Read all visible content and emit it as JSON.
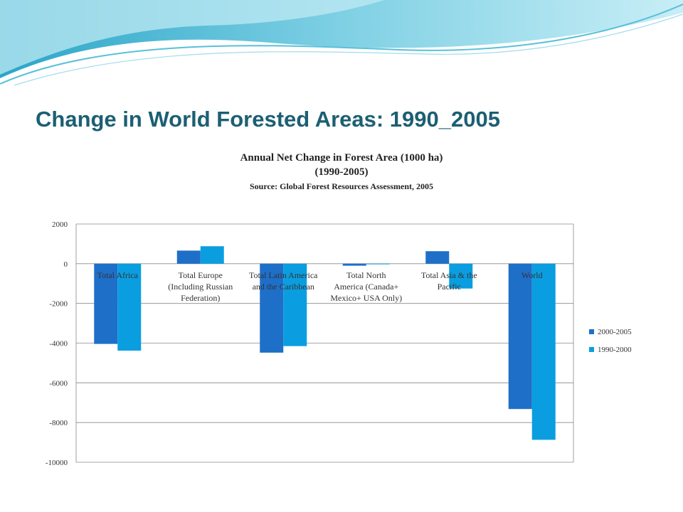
{
  "slide": {
    "title": "Change in World Forested Areas: 1990_2005"
  },
  "colors": {
    "title_text": "#1c5f73",
    "wave_dark": "#3fb0cf",
    "wave_light": "#aee3ef",
    "series_2000_2005": "#1e6fc8",
    "series_1990_2000": "#0a9ee0"
  },
  "chart_data": {
    "type": "bar",
    "title": "Annual Net Change in Forest Area (1000 ha)",
    "title_line2": "(1990-2005)",
    "subtitle": "Source: Global Forest Resources Assessment, 2005",
    "categories": [
      [
        "Total Africa"
      ],
      [
        "Total Europe",
        "(Including Russian",
        "Federation)"
      ],
      [
        "Total Latin America",
        "and the Caribbean"
      ],
      [
        "Total North",
        "America (Canada+",
        "Mexico+ USA Only)"
      ],
      [
        "Total Asia & the",
        "Pacific"
      ],
      [
        "World"
      ]
    ],
    "series": [
      {
        "name": "2000-2005",
        "color": "#1e6fc8",
        "values": [
          -4040,
          660,
          -4480,
          -100,
          630,
          -7320
        ]
      },
      {
        "name": "1990-2000",
        "color": "#0a9ee0",
        "values": [
          -4380,
          880,
          -4150,
          -30,
          -1250,
          -8870
        ]
      }
    ],
    "ylim": [
      -10000,
      2000
    ],
    "yticks": [
      2000,
      0,
      -2000,
      -4000,
      -6000,
      -8000,
      -10000
    ],
    "grid": true,
    "legend_position": "right"
  }
}
